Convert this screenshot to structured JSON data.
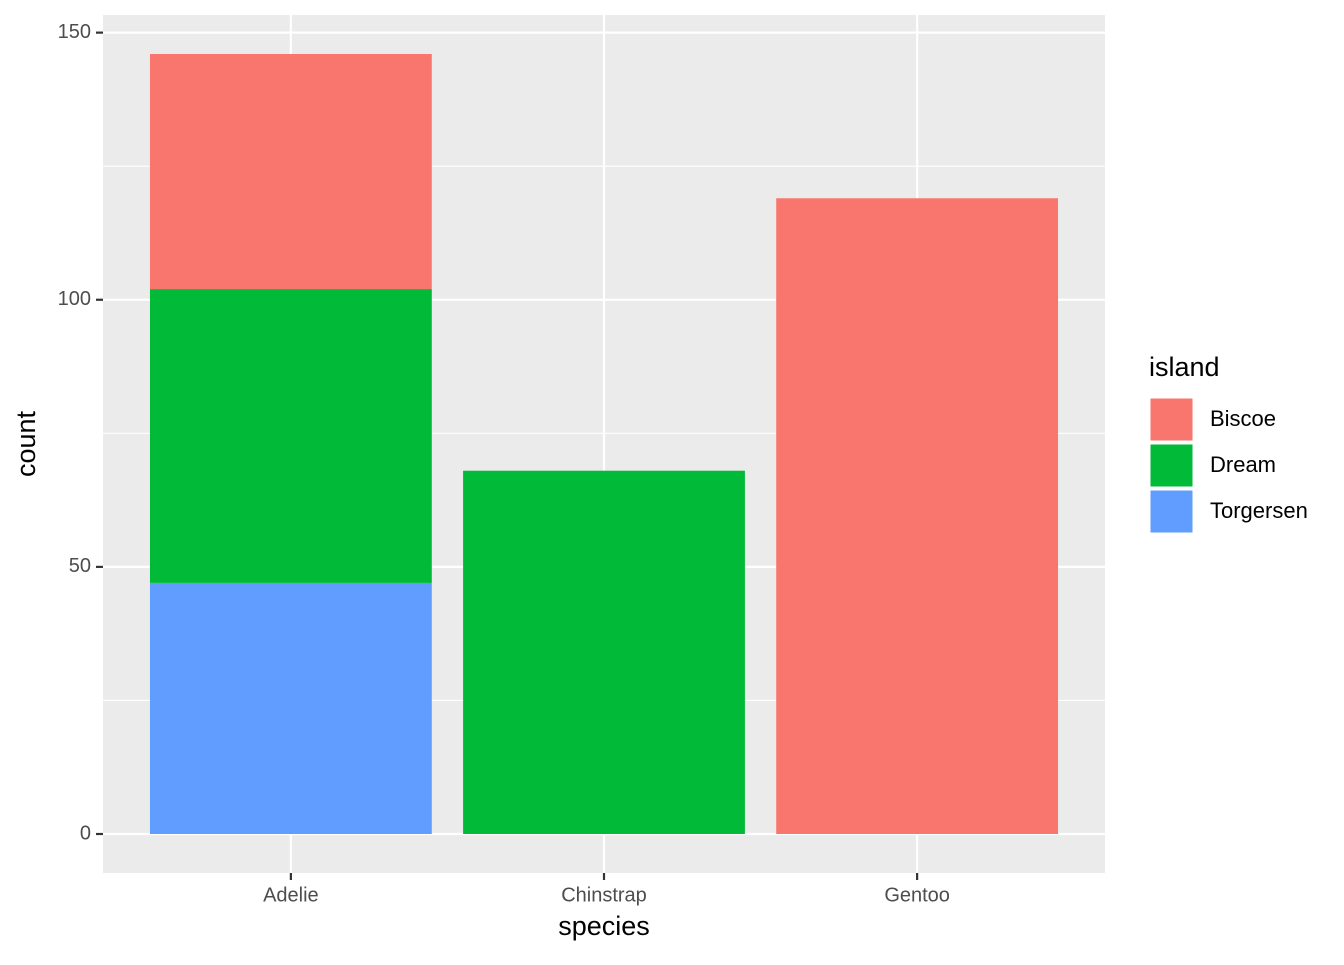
{
  "chart_data": {
    "type": "stacked_bar",
    "x_label": "species",
    "y_label": "count",
    "categories": [
      "Adelie",
      "Chinstrap",
      "Gentoo"
    ],
    "series": [
      {
        "name": "Biscoe",
        "color": "#F8766D",
        "values": [
          44,
          null,
          119
        ]
      },
      {
        "name": "Dream",
        "color": "#00BA38",
        "values": [
          55,
          68,
          null
        ]
      },
      {
        "name": "Torgersen",
        "color": "#619CFF",
        "values": [
          47,
          null,
          null
        ]
      }
    ],
    "legend_title": "island",
    "legend_position": "right",
    "ylim": [
      -7.3,
      153.3
    ],
    "yticks": [
      0,
      50,
      100,
      150
    ],
    "yminor": [
      25,
      75,
      125
    ],
    "grid": true
  }
}
